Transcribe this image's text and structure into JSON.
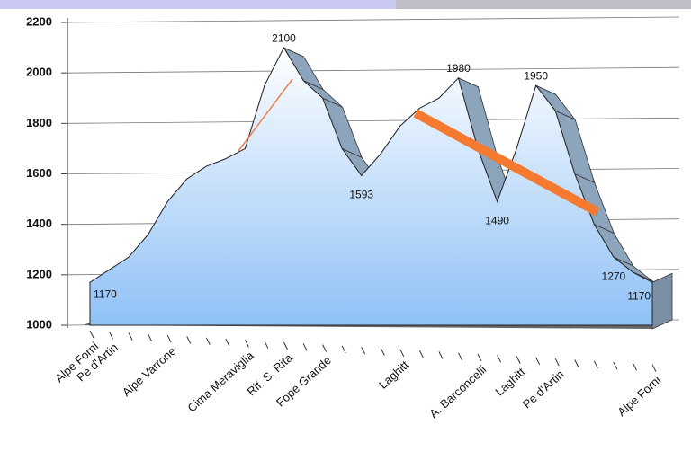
{
  "chart_data": {
    "type": "area",
    "categories": [
      "Alpe Forni",
      "Pe d'Artin",
      null,
      null,
      "Alpe Varrone",
      null,
      null,
      null,
      "Cima Meraviglia",
      null,
      "Rif. S. Rita",
      null,
      "Fope Grande",
      null,
      null,
      null,
      "Laghitt",
      null,
      null,
      null,
      "A. Barconcelli",
      null,
      "Laghitt",
      null,
      "Pe d'Artin",
      null,
      null,
      null,
      null,
      "Alpe Forni"
    ],
    "values": [
      1170,
      1220,
      1270,
      1360,
      1490,
      1580,
      1630,
      1660,
      1700,
      1950,
      2100,
      1970,
      1900,
      1700,
      1593,
      1680,
      1790,
      1860,
      1900,
      1980,
      1700,
      1490,
      1700,
      1950,
      1850,
      1600,
      1400,
      1270,
      1210,
      1170
    ],
    "value_labels": [
      "1170",
      null,
      null,
      null,
      null,
      null,
      null,
      null,
      null,
      null,
      "2100",
      null,
      null,
      null,
      "1593",
      null,
      null,
      null,
      null,
      "1980",
      null,
      "1490",
      null,
      "1950",
      null,
      null,
      null,
      "1270",
      null,
      "1170"
    ],
    "color": "#9cc8f5",
    "ylim": [
      1000,
      2200
    ],
    "yticks": [
      1000,
      1200,
      1400,
      1600,
      1800,
      2000,
      2200
    ],
    "grid": true
  }
}
